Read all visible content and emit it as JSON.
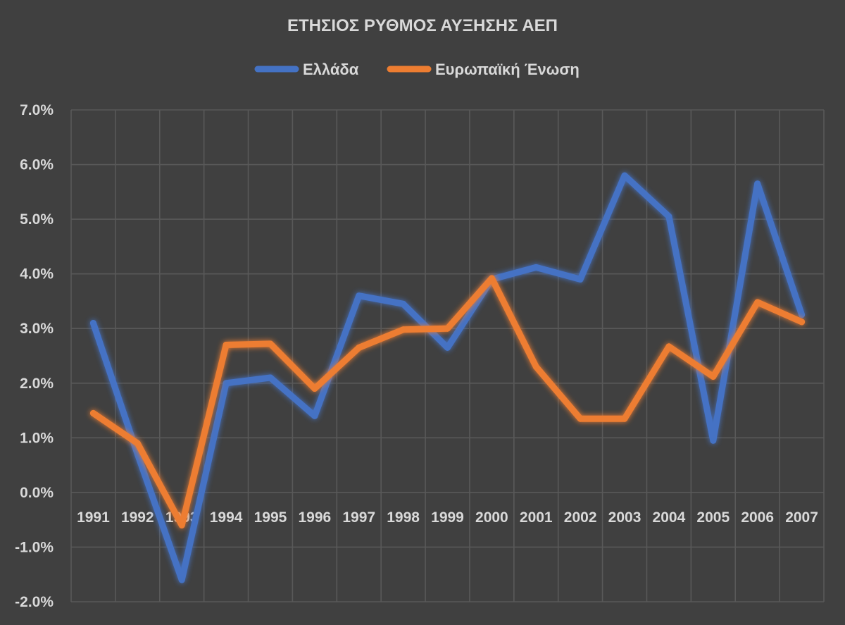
{
  "chart_data": {
    "type": "line",
    "title": "ΕΤΗΣΙΟΣ ΡΥΘΜΟΣ ΑΥΞΗΣΗΣ ΑΕΠ",
    "categories": [
      "1991",
      "1992",
      "1993",
      "1994",
      "1995",
      "1996",
      "1997",
      "1998",
      "1999",
      "2000",
      "2001",
      "2002",
      "2003",
      "2004",
      "2005",
      "2006",
      "2007"
    ],
    "series": [
      {
        "name": "Ελλάδα",
        "color": "#4472c4",
        "values": [
          3.1,
          0.7,
          -1.6,
          2.0,
          2.1,
          1.4,
          3.6,
          3.45,
          2.65,
          3.9,
          4.12,
          3.9,
          5.8,
          5.05,
          0.95,
          5.65,
          3.25
        ]
      },
      {
        "name": "Ευρωπαϊκή Ένωση",
        "color": "#ed7d31",
        "values": [
          1.45,
          0.9,
          -0.6,
          2.7,
          2.72,
          1.9,
          2.65,
          2.98,
          3.0,
          3.92,
          2.3,
          1.35,
          1.35,
          2.67,
          2.12,
          3.48,
          3.12
        ]
      }
    ],
    "ylim": [
      -2,
      7
    ],
    "yticks": [
      "-2.0%",
      "-1.0%",
      "0.0%",
      "1.0%",
      "2.0%",
      "3.0%",
      "4.0%",
      "5.0%",
      "6.0%",
      "7.0%"
    ],
    "ytick_values": [
      -2,
      -1,
      0,
      1,
      2,
      3,
      4,
      5,
      6,
      7
    ],
    "grid": true,
    "legend": "top"
  }
}
